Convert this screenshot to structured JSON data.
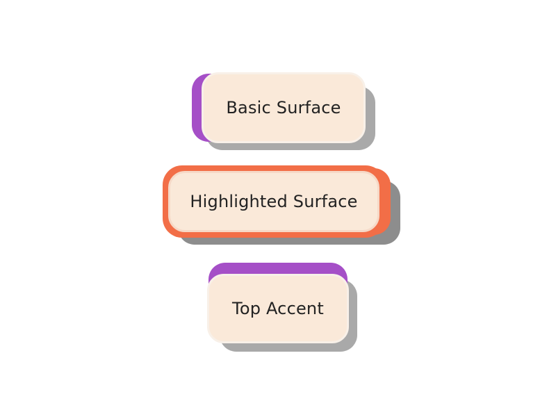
{
  "surfaces": [
    {
      "label": "Basic Surface"
    },
    {
      "label": "Highlighted Surface"
    },
    {
      "label": "Top Accent"
    }
  ],
  "colors": {
    "background": "#ffffff",
    "surface_fill": "#fae9d9",
    "accent_purple": "#a54fc7",
    "accent_orange": "#f26e47",
    "shadow_gray": "#a9a9a9",
    "text": "#222222"
  }
}
